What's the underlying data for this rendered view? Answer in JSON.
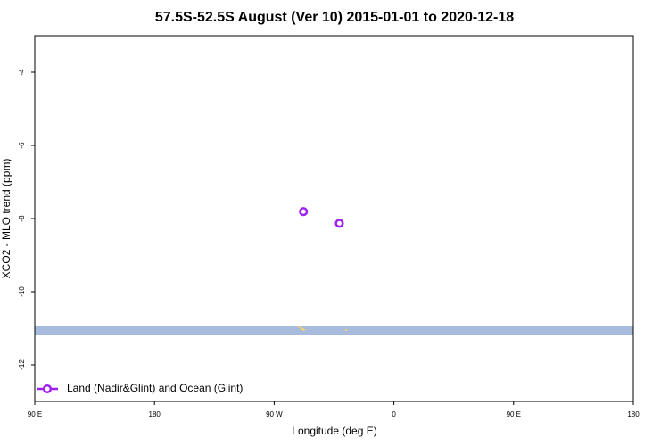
{
  "chart_data": {
    "type": "scatter",
    "title": "57.5S-52.5S August (Ver 10)   2015-01-01 to 2020-12-18",
    "x_label": "Longitude (deg E)",
    "y_label": "XCO2 - MLO trend (ppm)",
    "series": [
      {
        "name": "Land (Nadir&Glint) and Ocean (Glint)",
        "color": "#a020f0",
        "x": [
          292,
          319
        ],
        "values": [
          -7.81,
          -8.13
        ]
      }
    ],
    "xlim": [
      90,
      540
    ],
    "xticks": [
      {
        "value": 90,
        "label": "90 E"
      },
      180,
      {
        "value": 270,
        "label": "90 W"
      },
      {
        "value": 360,
        "label": "0"
      },
      {
        "value": 450,
        "label": "90 E"
      },
      {
        "value": 540,
        "label": "180"
      }
    ],
    "ylim": [
      -13,
      -3
    ],
    "yticks": [
      -4,
      -6,
      -8,
      -10,
      -12
    ],
    "grid": false,
    "legend": "bottom-left"
  }
}
